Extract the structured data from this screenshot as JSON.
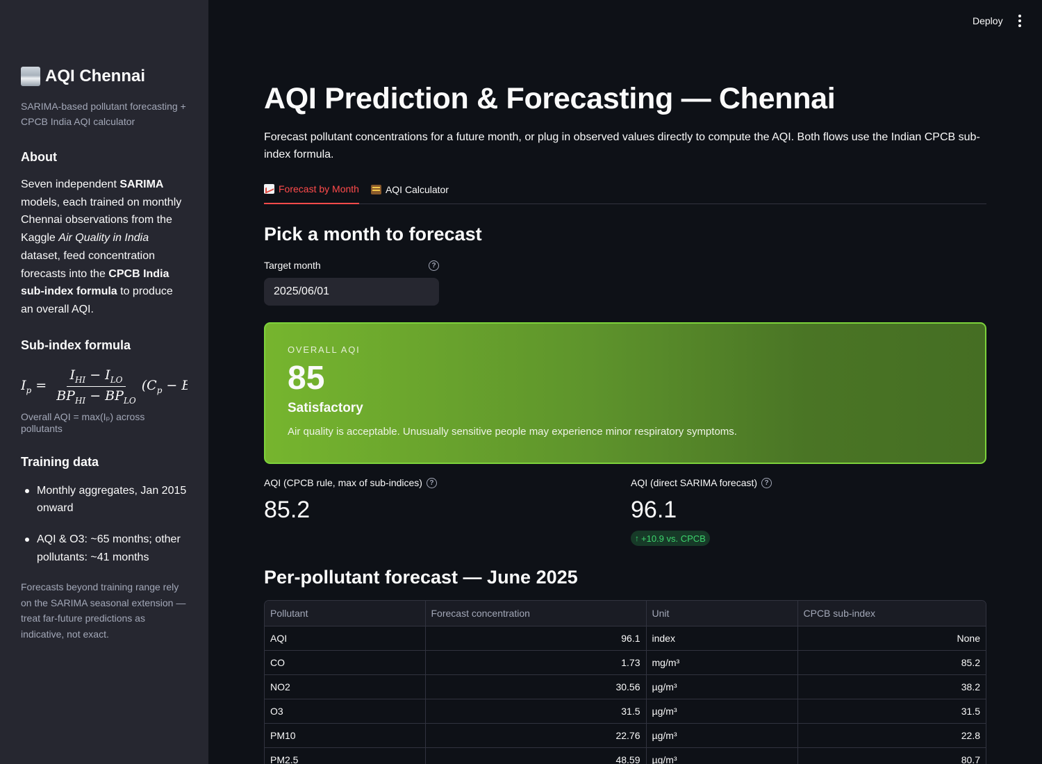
{
  "sidebar": {
    "title": "AQI Chennai",
    "subtitle": "SARIMA-based pollutant forecasting + CPCB India AQI calculator",
    "about_heading": "About",
    "about_1": "Seven independent ",
    "about_b1": "SARIMA",
    "about_2": " models, each trained on monthly Chennai observations from the Kaggle ",
    "about_i1": "Air Quality in India",
    "about_3": " dataset, feed concentration forecasts into the ",
    "about_b2": "CPCB India sub-index formula",
    "about_4": " to produce an overall AQI.",
    "formula_heading": "Sub-index formula",
    "formula_note": "Overall AQI = max(Iₚ) across pollutants",
    "training_heading": "Training data",
    "training_items": [
      "Monthly aggregates, Jan 2015 onward",
      "AQI & O3: ~65 months; other pollutants: ~41 months"
    ],
    "footnote": "Forecasts beyond training range rely on the SARIMA seasonal extension — treat far-future predictions as indicative, not exact."
  },
  "header": {
    "deploy_label": "Deploy",
    "menu_icon": "vertical-dots-icon"
  },
  "main": {
    "title": "AQI Prediction & Forecasting — Chennai",
    "intro": "Forecast pollutant concentrations for a future month, or plug in observed values directly to compute the AQI. Both flows use the Indian CPCB sub-index formula.",
    "tabs": [
      {
        "label": "Forecast by Month",
        "icon": "chart-increasing-icon",
        "active": true
      },
      {
        "label": "AQI Calculator",
        "icon": "abacus-icon",
        "active": false
      }
    ],
    "pick_heading": "Pick a month to forecast",
    "target_label": "Target month",
    "target_value": "2025/06/01",
    "aqi_card": {
      "kicker": "OVERALL AQI",
      "value": "85",
      "category": "Satisfactory",
      "description": "Air quality is acceptable. Unusually sensitive people may experience minor respiratory symptoms.",
      "color": "#7dd33b"
    },
    "metric_cpcb": {
      "label": "AQI (CPCB rule, max of sub-indices)",
      "value": "85.2"
    },
    "metric_sarima": {
      "label": "AQI (direct SARIMA forecast)",
      "value": "96.1",
      "delta": "+10.9 vs. CPCB"
    },
    "per_heading": "Per-pollutant forecast — June 2025",
    "table": {
      "headers": [
        "Pollutant",
        "Forecast concentration",
        "Unit",
        "CPCB sub-index"
      ],
      "rows": [
        {
          "pollutant": "AQI",
          "conc": "96.1",
          "unit": "index",
          "sub": "None"
        },
        {
          "pollutant": "CO",
          "conc": "1.73",
          "unit": "mg/m³",
          "sub": "85.2"
        },
        {
          "pollutant": "NO2",
          "conc": "30.56",
          "unit": "µg/m³",
          "sub": "38.2"
        },
        {
          "pollutant": "O3",
          "conc": "31.5",
          "unit": "µg/m³",
          "sub": "31.5"
        },
        {
          "pollutant": "PM10",
          "conc": "22.76",
          "unit": "µg/m³",
          "sub": "22.8"
        },
        {
          "pollutant": "PM2.5",
          "conc": "48.59",
          "unit": "µg/m³",
          "sub": "80.7"
        }
      ]
    }
  }
}
